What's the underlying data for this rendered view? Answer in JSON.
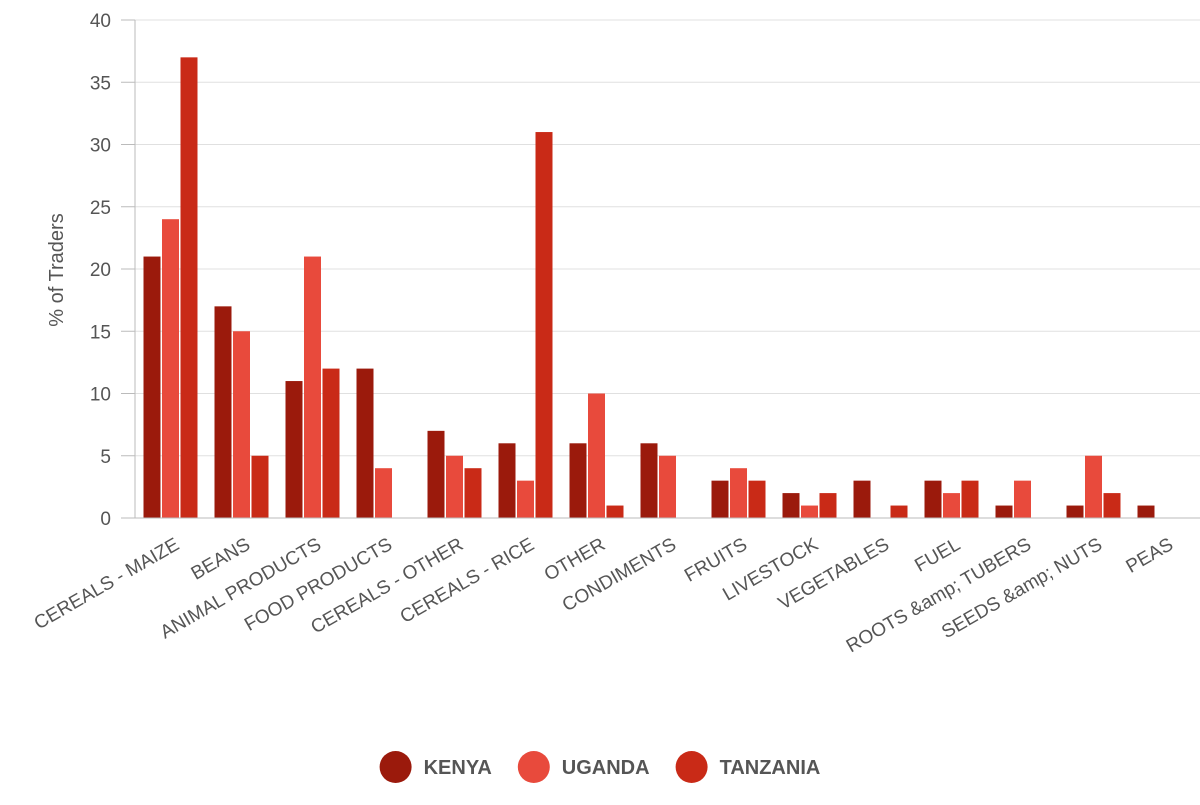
{
  "chart_data": {
    "type": "bar",
    "title": "",
    "xlabel": "",
    "ylabel": "% of Traders",
    "ylim": [
      0,
      40
    ],
    "yticks": [
      0,
      5,
      10,
      15,
      20,
      25,
      30,
      35,
      40
    ],
    "grid": true,
    "legend_position": "bottom-center",
    "categories": [
      "CEREALS - MAIZE",
      "BEANS",
      "ANIMAL PRODUCTS",
      "FOOD PRODUCTS",
      "CEREALS - OTHER",
      "CEREALS - RICE",
      "OTHER",
      "CONDIMENTS",
      "FRUITS",
      "LIVESTOCK",
      "VEGETABLES",
      "FUEL",
      "ROOTS &amp; TUBERS",
      "SEEDS &amp; NUTS",
      "PEAS"
    ],
    "series": [
      {
        "name": "KENYA",
        "color": "#9b1a0c",
        "values": [
          21,
          17,
          11,
          12,
          7,
          6,
          6,
          6,
          3,
          2,
          3,
          3,
          1,
          1,
          1
        ]
      },
      {
        "name": "UGANDA",
        "color": "#e84a3c",
        "values": [
          24,
          15,
          21,
          4,
          5,
          3,
          10,
          5,
          4,
          1,
          0,
          2,
          3,
          5,
          0
        ]
      },
      {
        "name": "TANZANIA",
        "color": "#c92a17",
        "values": [
          37,
          5,
          12,
          0,
          4,
          31,
          1,
          0,
          3,
          2,
          1,
          3,
          0,
          2,
          0
        ]
      }
    ]
  }
}
